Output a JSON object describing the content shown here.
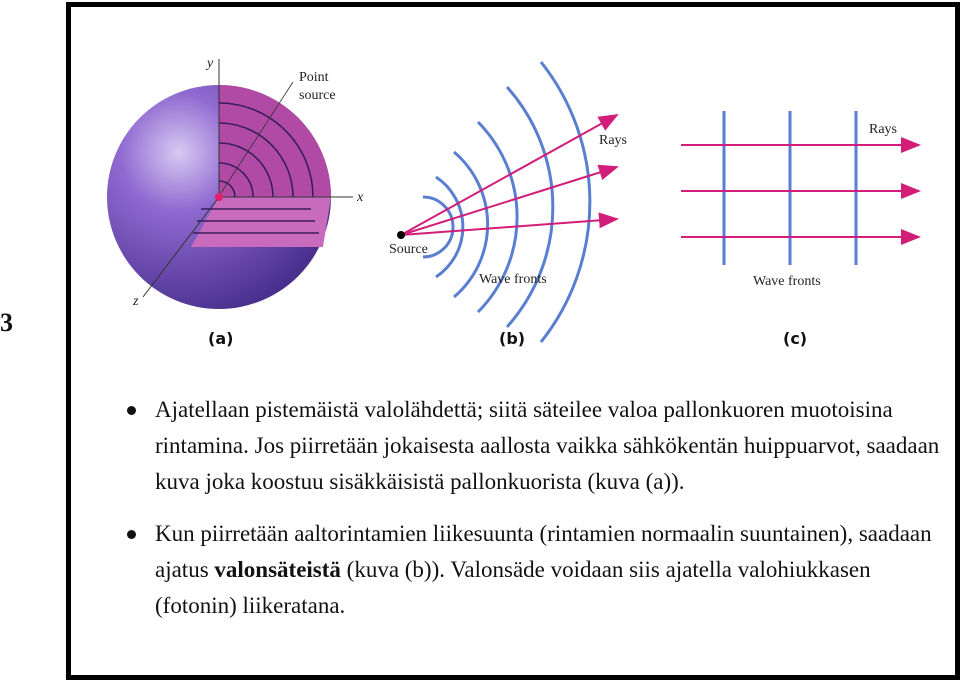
{
  "side_mark": "3",
  "figure": {
    "panel_a": {
      "label": "(a)",
      "point_source": [
        "Point",
        "source"
      ],
      "axis_x": "x",
      "axis_y": "y",
      "axis_z": "z"
    },
    "panel_b": {
      "label": "(b)",
      "rays": "Rays",
      "source": "Source",
      "wave_fronts": "Wave fronts"
    },
    "panel_c": {
      "label": "(c)",
      "rays": "Rays",
      "wave_fronts": "Wave fronts"
    },
    "colors": {
      "sphere": "#7a52c0",
      "cutaway": "#a23a9a",
      "wavefront": "#5a7ed0",
      "ray": "#d21e78"
    }
  },
  "bullets": [
    {
      "text": "Ajatellaan pistemäistä valolähdettä; siitä säteilee valoa pallonkuoren muotoisina rintamina. Jos piirretään jokaisesta aallosta vaikka sähkökentän huippuarvot, saadaan kuva joka koostuu sisäkkäisistä pallonkuorista (kuva (a))."
    },
    {
      "before": "Kun piirretään aaltorintamien liikesuunta (rintamien normaalin suuntainen), saadaan ajatus ",
      "bold": "valonsäteistä",
      "after": " (kuva (b)). Valonsäde voidaan siis ajatella valohiukkasen (fotonin) liikeratana."
    }
  ]
}
